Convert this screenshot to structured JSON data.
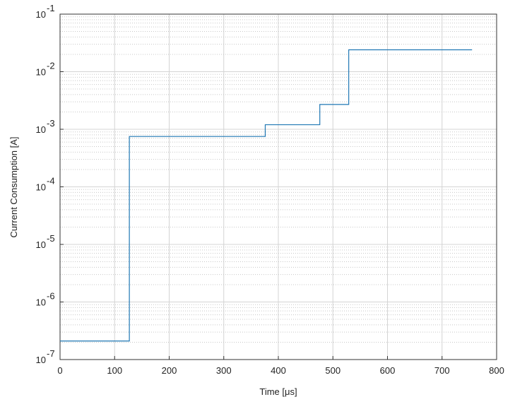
{
  "chart_data": {
    "type": "line",
    "x_label": "Time [μs]",
    "y_label": "Current Consumption [A]",
    "log_y": true,
    "grid": true,
    "minor_grid": true,
    "xlim": [
      0,
      800
    ],
    "xticks": [
      0,
      100,
      200,
      300,
      400,
      500,
      600,
      700,
      800
    ],
    "ylim": [
      1e-07,
      0.1
    ],
    "yticks": [
      {
        "value": 1e-07,
        "label": "10",
        "exponent": "-7"
      },
      {
        "value": 1e-06,
        "label": "10",
        "exponent": "-6"
      },
      {
        "value": 1e-05,
        "label": "10",
        "exponent": "-5"
      },
      {
        "value": 0.0001,
        "label": "10",
        "exponent": "-4"
      },
      {
        "value": 0.001,
        "label": "10",
        "exponent": "-3"
      },
      {
        "value": 0.01,
        "label": "10",
        "exponent": "-2"
      },
      {
        "value": 0.1,
        "label": "10",
        "exponent": "-1"
      }
    ],
    "series": [
      {
        "color": "#1f77b4",
        "x": [
          0,
          127,
          127,
          376,
          376,
          476,
          476,
          529,
          529,
          755
        ],
        "values": [
          2.1e-07,
          2.1e-07,
          0.00075,
          0.00075,
          0.0012,
          0.0012,
          0.0027,
          0.0027,
          0.024,
          0.024
        ]
      }
    ]
  }
}
